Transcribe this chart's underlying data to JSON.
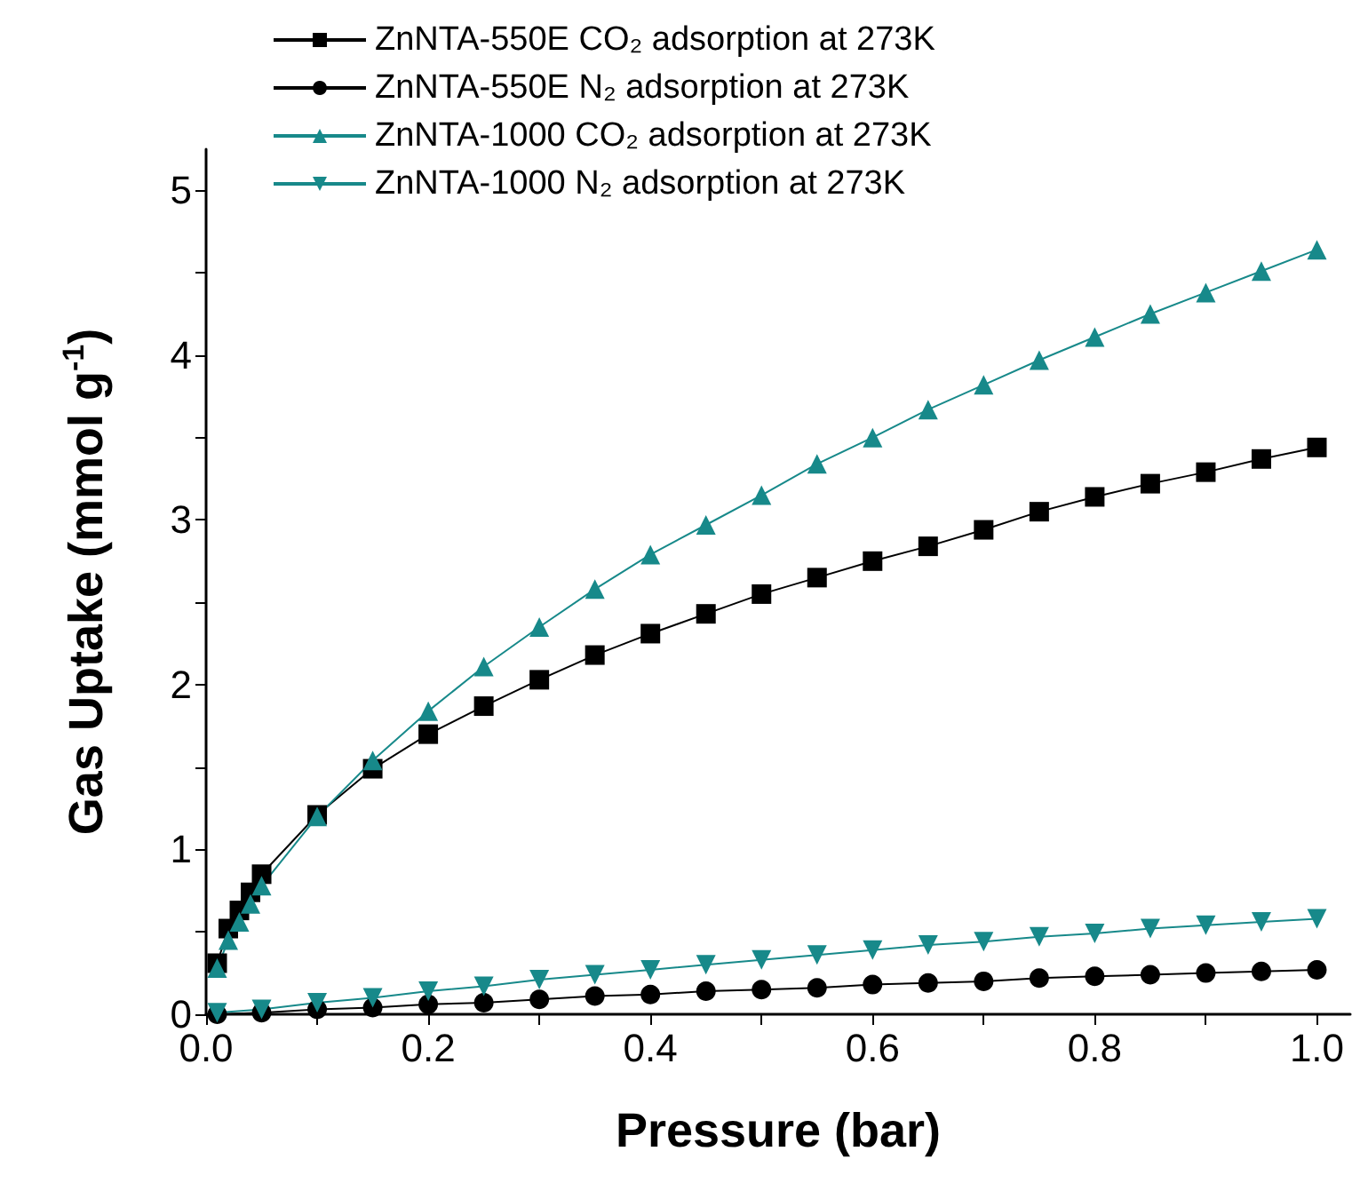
{
  "chart_data": {
    "type": "line",
    "xlabel": "Pressure (bar)",
    "ylabel": "Gas Uptake (mmol g$^{-1}$)",
    "xlim": [
      0,
      1.03
    ],
    "ylim": [
      0,
      5.25
    ],
    "xticks": [
      {
        "value": 0,
        "label": "0.0"
      },
      {
        "value": 0.1,
        "label": null
      },
      {
        "value": 0.2,
        "label": "0.2"
      },
      {
        "value": 0.3,
        "label": null
      },
      {
        "value": 0.4,
        "label": "0.4"
      },
      {
        "value": 0.5,
        "label": null
      },
      {
        "value": 0.6,
        "label": "0.6"
      },
      {
        "value": 0.7,
        "label": null
      },
      {
        "value": 0.8,
        "label": "0.8"
      },
      {
        "value": 0.9,
        "label": null
      },
      {
        "value": 1,
        "label": "1.0"
      }
    ],
    "yticks": [
      0,
      {
        "value": 0.5,
        "label": null
      },
      1,
      {
        "value": 1.5,
        "label": null
      },
      2,
      {
        "value": 2.5,
        "label": null
      },
      3,
      {
        "value": 3.5,
        "label": null
      },
      4,
      {
        "value": 4.5,
        "label": null
      },
      5
    ],
    "grid": false,
    "legend": "top left",
    "line_style": "solid",
    "series": [
      {
        "name": "ZnNTA-550E CO₂ adsorption at 273K",
        "color": "#000000",
        "marker": "square",
        "x": [
          0.01,
          0.02,
          0.03,
          0.04,
          0.05,
          0.1,
          0.15,
          0.2,
          0.25,
          0.3,
          0.35,
          0.4,
          0.45,
          0.5,
          0.55,
          0.6,
          0.65,
          0.7,
          0.75,
          0.8,
          0.85,
          0.9,
          0.95,
          1.0
        ],
        "values": [
          0.31,
          0.52,
          0.63,
          0.74,
          0.85,
          1.21,
          1.49,
          1.7,
          1.87,
          2.03,
          2.18,
          2.31,
          2.43,
          2.55,
          2.65,
          2.75,
          2.84,
          2.94,
          3.05,
          3.14,
          3.22,
          3.29,
          3.37,
          3.44
        ]
      },
      {
        "name": "ZnNTA-550E N₂ adsorption at 273K",
        "color": "#000000",
        "marker": "circle",
        "x": [
          0.01,
          0.05,
          0.1,
          0.15,
          0.2,
          0.25,
          0.3,
          0.35,
          0.4,
          0.45,
          0.5,
          0.55,
          0.6,
          0.65,
          0.7,
          0.75,
          0.8,
          0.85,
          0.9,
          0.95,
          1.0
        ],
        "values": [
          0.0,
          0.01,
          0.03,
          0.04,
          0.06,
          0.07,
          0.09,
          0.11,
          0.12,
          0.14,
          0.15,
          0.16,
          0.18,
          0.19,
          0.2,
          0.22,
          0.23,
          0.24,
          0.25,
          0.26,
          0.27
        ]
      },
      {
        "name": "ZnNTA-1000 CO₂ adsorption at 273K",
        "color": "#17898a",
        "marker": "triangle",
        "x": [
          0.01,
          0.02,
          0.03,
          0.04,
          0.05,
          0.1,
          0.15,
          0.2,
          0.25,
          0.3,
          0.35,
          0.4,
          0.45,
          0.5,
          0.55,
          0.6,
          0.65,
          0.7,
          0.75,
          0.8,
          0.85,
          0.9,
          0.95,
          1.0
        ],
        "values": [
          0.28,
          0.45,
          0.56,
          0.67,
          0.78,
          1.2,
          1.54,
          1.84,
          2.11,
          2.35,
          2.58,
          2.79,
          2.97,
          3.15,
          3.34,
          3.5,
          3.67,
          3.82,
          3.97,
          4.11,
          4.25,
          4.38,
          4.51,
          4.64
        ]
      },
      {
        "name": "ZnNTA-1000 N₂ adsorption at 273K",
        "color": "#17898a",
        "marker": "triangle-down",
        "x": [
          0.01,
          0.05,
          0.1,
          0.15,
          0.2,
          0.25,
          0.3,
          0.35,
          0.4,
          0.45,
          0.5,
          0.55,
          0.6,
          0.65,
          0.7,
          0.75,
          0.8,
          0.85,
          0.9,
          0.95,
          1.0
        ],
        "values": [
          0.01,
          0.03,
          0.07,
          0.1,
          0.14,
          0.17,
          0.21,
          0.24,
          0.27,
          0.3,
          0.33,
          0.36,
          0.39,
          0.42,
          0.44,
          0.47,
          0.49,
          0.52,
          0.54,
          0.56,
          0.58
        ]
      }
    ]
  }
}
